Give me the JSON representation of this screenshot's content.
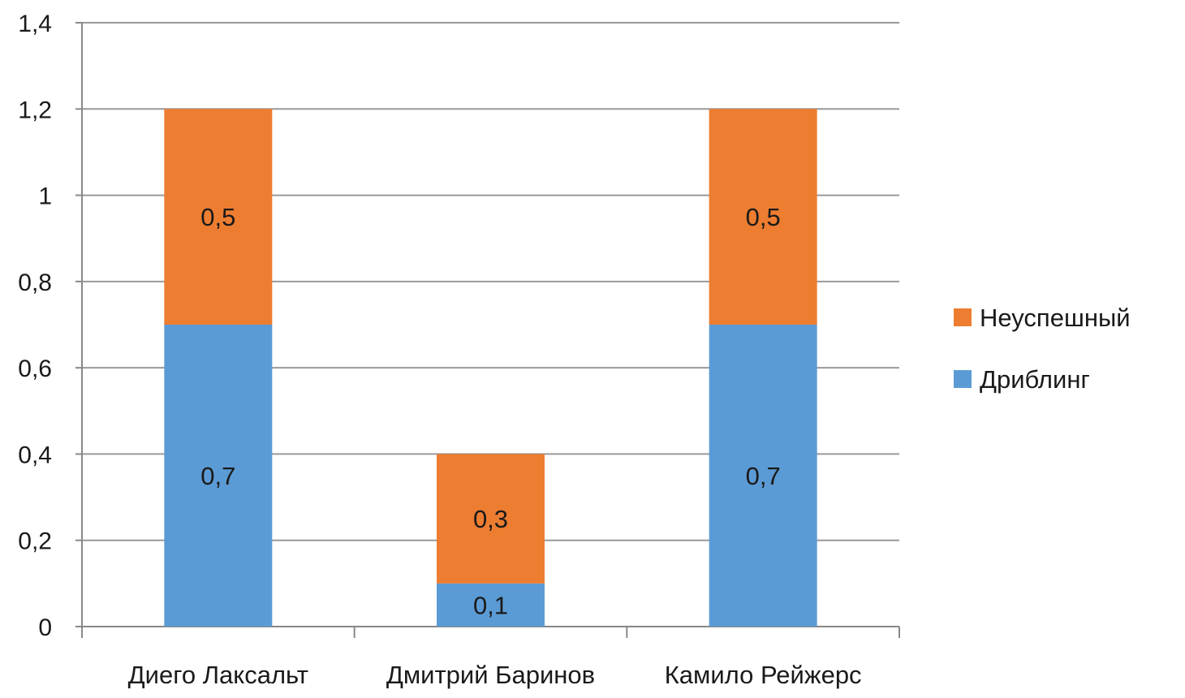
{
  "chart_data": {
    "type": "bar",
    "stacked": true,
    "categories": [
      "Диего Лаксальт",
      "Дмитрий Баринов",
      "Камило Рейжерс"
    ],
    "series": [
      {
        "name": "Дриблинг",
        "values": [
          0.7,
          0.1,
          0.7
        ],
        "labels": [
          "0,7",
          "0,1",
          "0,7"
        ],
        "color": "#5b9bd5"
      },
      {
        "name": "Неуспешный",
        "values": [
          0.5,
          0.3,
          0.5
        ],
        "labels": [
          "0,5",
          "0,3",
          "0,5"
        ],
        "color": "#ed7d31"
      }
    ],
    "y_ticks": [
      0,
      0.2,
      0.4,
      0.6,
      0.8,
      1,
      1.2,
      1.4
    ],
    "y_tick_labels": [
      "0",
      "0,2",
      "0,4",
      "0,6",
      "0,8",
      "1",
      "1,2",
      "1,4"
    ],
    "ylim": [
      0,
      1.4
    ],
    "grid": true,
    "legend_position": "right",
    "legend_order": [
      "Неуспешный",
      "Дриблинг"
    ],
    "gridline_color": "#999999",
    "axis_color": "#888888"
  }
}
